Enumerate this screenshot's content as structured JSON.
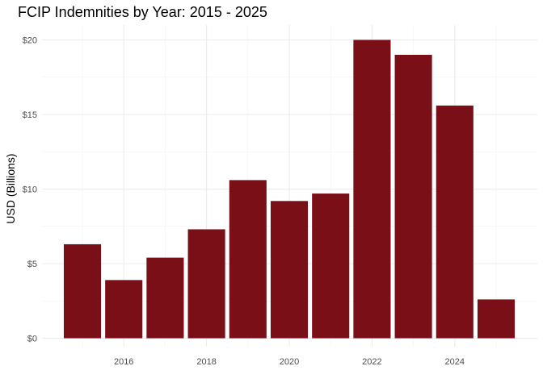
{
  "chart_data": {
    "type": "bar",
    "title": "FCIP Indemnities by Year: 2015 - 2025",
    "xlabel": "",
    "ylabel": "USD (Billions)",
    "categories": [
      2015,
      2016,
      2017,
      2018,
      2019,
      2020,
      2021,
      2022,
      2023,
      2024,
      2025
    ],
    "values": [
      6.3,
      3.9,
      5.4,
      7.3,
      10.6,
      9.2,
      9.7,
      20.0,
      19.0,
      15.6,
      2.6
    ],
    "ylim": [
      0,
      20
    ],
    "x_ticks": [
      2016,
      2018,
      2020,
      2022,
      2024
    ],
    "x_tick_labels": [
      "2016",
      "2018",
      "2020",
      "2022",
      "2024"
    ],
    "y_ticks": [
      0,
      5,
      10,
      15,
      20
    ],
    "y_tick_labels": [
      "$0",
      "$5",
      "$10",
      "$15",
      "$20"
    ],
    "grid": true,
    "legend": "none",
    "bar_color": "#7a0f17"
  }
}
